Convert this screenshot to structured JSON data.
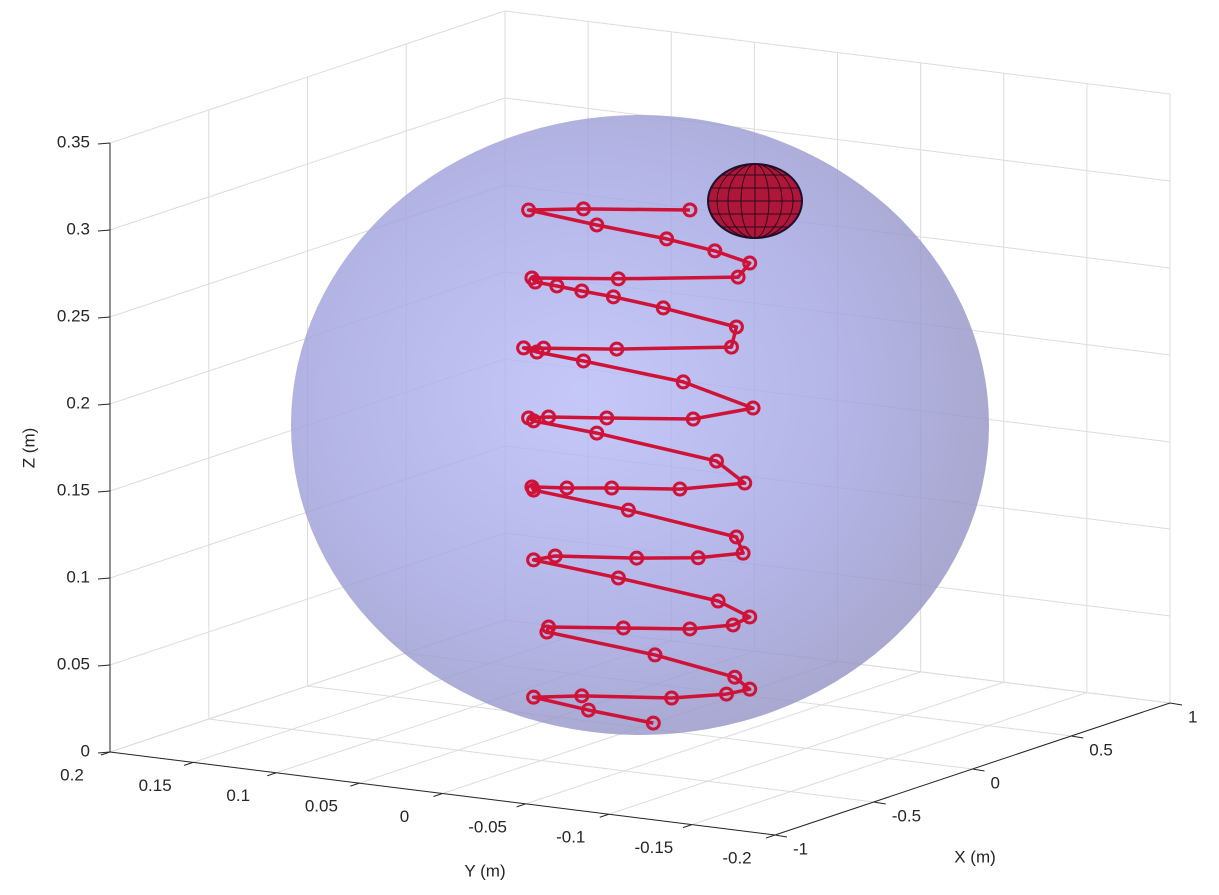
{
  "chart_data": {
    "type": "line3d",
    "xlabel": "X (m)",
    "ylabel": "Y (m)",
    "zlabel": "Z (m)",
    "color": "#cf1238",
    "x": [
      0,
      0,
      0,
      0,
      0,
      0,
      0,
      0,
      0,
      0,
      0,
      0,
      0,
      0,
      0,
      0,
      0,
      0,
      0,
      0,
      0,
      0,
      0,
      0,
      0,
      0,
      0,
      0,
      0,
      0,
      0,
      0,
      0,
      0,
      0,
      0,
      0,
      0,
      0,
      0,
      0,
      0,
      0,
      0,
      0,
      0,
      0,
      0,
      0,
      0,
      0,
      0,
      0,
      0,
      0,
      0,
      0,
      0,
      0,
      0,
      0
    ],
    "y": [
      -0.008,
      0.031,
      0.064,
      0.035,
      -0.019,
      -0.052,
      -0.066,
      -0.057,
      -0.009,
      0.056,
      0.055,
      0.01,
      -0.03,
      -0.056,
      -0.066,
      -0.047,
      0.013,
      0.064,
      0.051,
      0.002,
      -0.035,
      -0.062,
      -0.058,
      0.007,
      0.064,
      0.065,
      0.044,
      0.017,
      -0.024,
      -0.063,
      -0.046,
      0.026,
      0.064,
      0.067,
      0.055,
      0.02,
      -0.032,
      -0.068,
      -0.026,
      0.034,
      0.062,
      0.07,
      0.058,
      0.014,
      -0.055,
      -0.058,
      -0.014,
      0.016,
      0.035,
      0.05,
      0.063,
      0.065,
      0.013,
      -0.059,
      -0.066,
      -0.045,
      -0.016,
      0.026,
      0.067,
      0.034,
      -0.03
    ],
    "z": [
      0.0035,
      0.0063,
      0.0098,
      0.014,
      0.0192,
      0.0254,
      0.0299,
      0.0357,
      0.0428,
      0.0482,
      0.0512,
      0.056,
      0.0602,
      0.0656,
      0.0714,
      0.0783,
      0.0844,
      0.0887,
      0.0925,
      0.0971,
      0.1017,
      0.1076,
      0.1164,
      0.1241,
      0.1288,
      0.1305,
      0.1324,
      0.1356,
      0.1399,
      0.148,
      0.1586,
      0.1661,
      0.1686,
      0.1699,
      0.1719,
      0.1755,
      0.1811,
      0.1917,
      0.2017,
      0.2066,
      0.2084,
      0.2098,
      0.2111,
      0.2158,
      0.2252,
      0.2371,
      0.2428,
      0.2456,
      0.2467,
      0.2478,
      0.2485,
      0.2506,
      0.2563,
      0.2659,
      0.2748,
      0.2793,
      0.2827,
      0.2857,
      0.2894,
      0.294,
      0.301
    ],
    "xlim": [
      -1,
      1
    ],
    "xticks": [
      -1,
      -0.5,
      0,
      0.5,
      1
    ],
    "ylim": [
      -0.2,
      0.2
    ],
    "yticks": [
      0.2,
      0.15,
      0.1,
      0.05,
      0,
      -0.05,
      -0.1,
      -0.15,
      -0.2
    ],
    "zlim": [
      0,
      0.35
    ],
    "zticks": [
      0,
      0.05,
      0.1,
      0.15,
      0.2,
      0.25,
      0.3,
      0.35
    ],
    "grid": true
  }
}
